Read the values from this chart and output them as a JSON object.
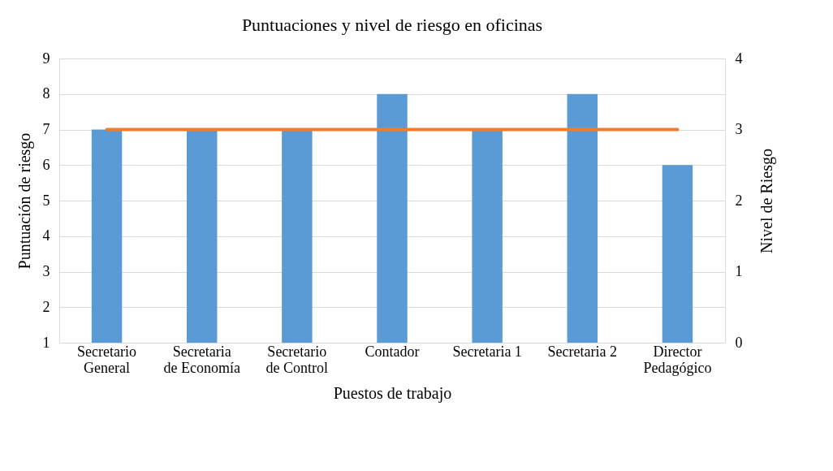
{
  "chart_data": {
    "type": "bar",
    "title": "Puntuaciones y nivel de riesgo en oficinas",
    "xlabel": "Puestos de trabajo",
    "ylabel": "Puntuación de riesgo",
    "y2label": "Nivel de Riesgo",
    "categories": [
      "Secretario General",
      "Secretaria de Economía",
      "Secretario de Control",
      "Contador",
      "Secretaria 1",
      "Secretaria 2",
      "Director Pedagógico"
    ],
    "series": [
      {
        "color": "#5b9bd5",
        "values": [
          7,
          7,
          7,
          8,
          7,
          8,
          6
        ]
      },
      {
        "type": "line",
        "color": "#ed7d31",
        "axis": "y2",
        "values": [
          3,
          3,
          3,
          3,
          3,
          3,
          3
        ]
      }
    ],
    "ylim": [
      1,
      9
    ],
    "yticks": [
      1,
      2,
      3,
      4,
      5,
      6,
      7,
      8,
      9
    ],
    "y2lim": [
      0,
      4
    ],
    "y2ticks": [
      0,
      1,
      2,
      3,
      4
    ],
    "grid": "y"
  }
}
